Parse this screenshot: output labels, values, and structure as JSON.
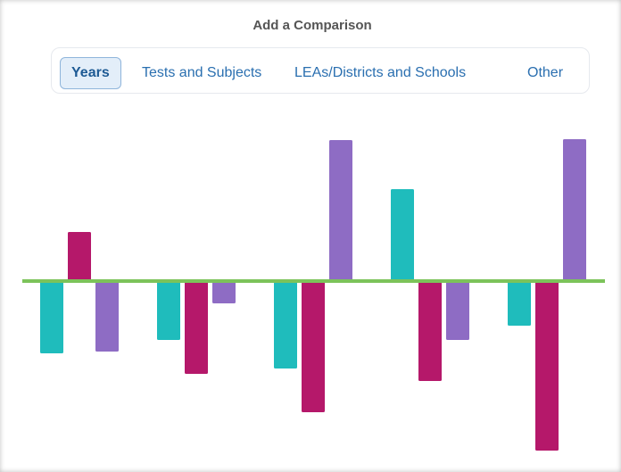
{
  "header": {
    "title": "Add a Comparison"
  },
  "tabs": {
    "items": [
      "Years",
      "Tests and Subjects",
      "LEAs/Districts and Schools",
      "Other"
    ],
    "selected": 0
  },
  "chart_data": {
    "type": "bar",
    "categories": [
      null,
      null,
      null,
      null,
      null
    ],
    "series": [
      {
        "color": "#1fbcbc",
        "values": [
          -81,
          -66,
          -98,
          103,
          -50
        ]
      },
      {
        "color": "#b5186a",
        "values": [
          55,
          -104,
          -147,
          -112,
          -190
        ]
      },
      {
        "color": "#8e6cc4",
        "values": [
          -79,
          -25,
          158,
          -66,
          159
        ]
      }
    ],
    "ylim": [
      -200,
      170
    ],
    "baseline_color": "#7cc35a"
  }
}
